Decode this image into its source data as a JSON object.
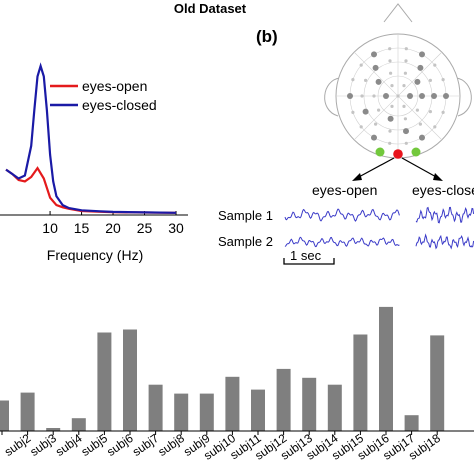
{
  "header": {
    "title": "Old Dataset"
  },
  "panel_b": {
    "label": "(b)",
    "eyes_open_label": "eyes-open",
    "eyes_closed_label": "eyes-close",
    "sample1_label": "Sample 1",
    "sample2_label": "Sample 2",
    "scale_label": "1 sec",
    "colors": {
      "waveform": "#3b3bc8",
      "electrode_red": "#e8141c",
      "electrode_green": "#72c83c",
      "electrode_gray": "#9a9a9a"
    }
  },
  "chart_data": [
    {
      "type": "line",
      "xlabel": "Frequency (Hz)",
      "xticks": [
        10,
        15,
        20,
        25,
        30
      ],
      "xlim": [
        3,
        30
      ],
      "series": [
        {
          "name": "eyes-open",
          "color": "#e41a1c",
          "x": [
            3,
            4,
            5,
            6,
            7,
            8,
            9,
            10,
            11,
            12,
            13,
            15,
            18,
            20,
            25,
            30
          ],
          "y": [
            0.3,
            0.27,
            0.23,
            0.22,
            0.25,
            0.31,
            0.24,
            0.11,
            0.06,
            0.045,
            0.035,
            0.02,
            0.015,
            0.012,
            0.01,
            0.008
          ]
        },
        {
          "name": "eyes-closed",
          "color": "#1a1aa6",
          "x": [
            3,
            4,
            5,
            6,
            7,
            7.5,
            8,
            8.5,
            9,
            9.5,
            10,
            10.5,
            11,
            12,
            13,
            15,
            18,
            20,
            25,
            30
          ],
          "y": [
            0.3,
            0.27,
            0.24,
            0.26,
            0.46,
            0.7,
            0.93,
            1.0,
            0.93,
            0.7,
            0.4,
            0.22,
            0.12,
            0.06,
            0.04,
            0.025,
            0.018,
            0.014,
            0.011,
            0.008
          ]
        }
      ],
      "legend": "top-right"
    },
    {
      "type": "bar",
      "color": "#7f7f7f",
      "categories": [
        "",
        "subj2",
        "subj3",
        "subj4",
        "subj5",
        "subj6",
        "subj7",
        "subj8",
        "subj9",
        "subj10",
        "subj11",
        "subj12",
        "subj13",
        "subj14",
        "subj15",
        "subj16",
        "subj17",
        "subj18"
      ],
      "values": [
        0.31,
        0.39,
        0.03,
        0.13,
        1.0,
        1.03,
        0.47,
        0.38,
        0.38,
        0.55,
        0.42,
        0.63,
        0.54,
        0.47,
        0.98,
        1.26,
        0.16,
        0.97
      ],
      "ylim": [
        0,
        1.35
      ]
    }
  ]
}
